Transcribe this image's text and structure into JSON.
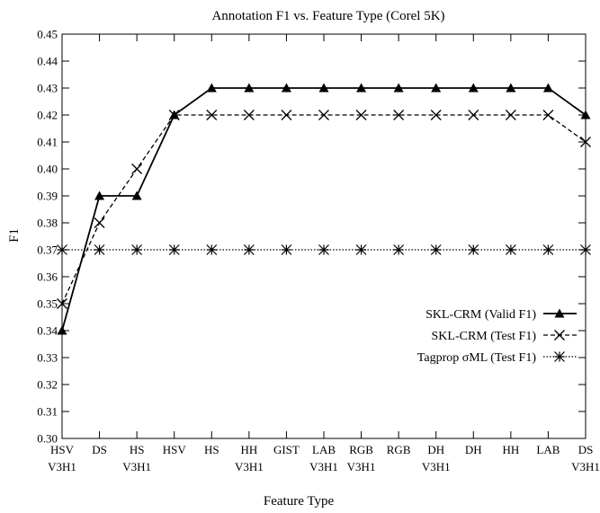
{
  "chart_data": {
    "type": "line",
    "title": "Annotation F1 vs. Feature Type (Corel 5K)",
    "xlabel": "Feature Type",
    "ylabel": "F1",
    "ylim": [
      0.3,
      0.45
    ],
    "yticks": [
      "0.30",
      "0.31",
      "0.32",
      "0.33",
      "0.34",
      "0.35",
      "0.36",
      "0.37",
      "0.38",
      "0.39",
      "0.40",
      "0.41",
      "0.42",
      "0.43",
      "0.44",
      "0.45"
    ],
    "categories": [
      [
        "HSV",
        "V3H1"
      ],
      [
        "DS"
      ],
      [
        "HS",
        "V3H1"
      ],
      [
        "HSV"
      ],
      [
        "HS"
      ],
      [
        "HH",
        "V3H1"
      ],
      [
        "GIST"
      ],
      [
        "LAB",
        "V3H1"
      ],
      [
        "RGB",
        "V3H1"
      ],
      [
        "RGB"
      ],
      [
        "DH",
        "V3H1"
      ],
      [
        "DH"
      ],
      [
        "HH"
      ],
      [
        "LAB"
      ],
      [
        "DS",
        "V3H1"
      ]
    ],
    "legend_position": "right",
    "grid": false,
    "series": [
      {
        "name": "SKL-CRM (Valid F1)",
        "style": "solid",
        "marker": "triangle",
        "values": [
          0.34,
          0.39,
          0.39,
          0.42,
          0.43,
          0.43,
          0.43,
          0.43,
          0.43,
          0.43,
          0.43,
          0.43,
          0.43,
          0.43,
          0.42
        ]
      },
      {
        "name": "SKL-CRM (Test F1)",
        "style": "dashed",
        "marker": "x",
        "values": [
          0.35,
          0.38,
          0.4,
          0.42,
          0.42,
          0.42,
          0.42,
          0.42,
          0.42,
          0.42,
          0.42,
          0.42,
          0.42,
          0.42,
          0.41
        ]
      },
      {
        "name": "Tagprop σML (Test F1)",
        "style": "dotted",
        "marker": "asterisk",
        "values": [
          0.37,
          0.37,
          0.37,
          0.37,
          0.37,
          0.37,
          0.37,
          0.37,
          0.37,
          0.37,
          0.37,
          0.37,
          0.37,
          0.37,
          0.37
        ]
      }
    ]
  }
}
